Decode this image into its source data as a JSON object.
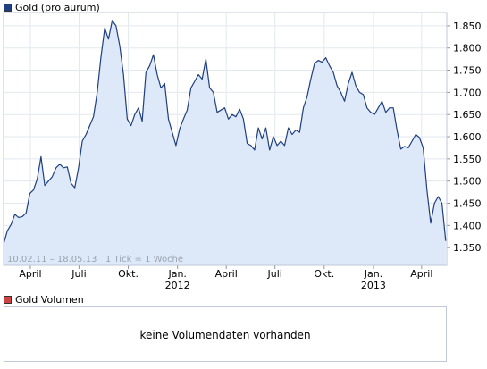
{
  "legend": {
    "price_label": "Gold (pro aurum)",
    "price_color": "#1f3f7f",
    "volume_label": "Gold Volumen",
    "volume_color": "#cc4444"
  },
  "info_text": "10.02.11 – 18.05.13   1 Tick = 1 Woche",
  "volume_panel": {
    "message": "keine Volumendaten vorhanden"
  },
  "chart_data": {
    "type": "area",
    "ylim": [
      1310,
      1880
    ],
    "y_ticks": [
      1350,
      1400,
      1450,
      1500,
      1550,
      1600,
      1650,
      1700,
      1750,
      1800,
      1850
    ],
    "y_tick_labels": [
      "1.350",
      "1.400",
      "1.450",
      "1.500",
      "1.550",
      "1.600",
      "1.650",
      "1.700",
      "1.750",
      "1.800",
      "1.850"
    ],
    "x_start": "2011-02-10",
    "x_end": "2013-05-18",
    "x_ticks": [
      {
        "date": "2011-04-01",
        "label": "April",
        "year": ""
      },
      {
        "date": "2011-07-01",
        "label": "Juli",
        "year": ""
      },
      {
        "date": "2011-10-01",
        "label": "Okt.",
        "year": ""
      },
      {
        "date": "2012-01-01",
        "label": "Jan.",
        "year": "2012"
      },
      {
        "date": "2012-04-01",
        "label": "April",
        "year": ""
      },
      {
        "date": "2012-07-01",
        "label": "Juli",
        "year": ""
      },
      {
        "date": "2012-10-01",
        "label": "Okt.",
        "year": ""
      },
      {
        "date": "2013-01-01",
        "label": "Jan.",
        "year": "2013"
      },
      {
        "date": "2013-04-01",
        "label": "April",
        "year": ""
      }
    ],
    "line_color": "#1f3f7f",
    "fill_color": "#dde8f8",
    "grid": true,
    "series": [
      {
        "values": [
          [
            "2011-02-10",
            1358
          ],
          [
            "2011-02-17",
            1388
          ],
          [
            "2011-02-24",
            1402
          ],
          [
            "2011-03-03",
            1425
          ],
          [
            "2011-03-10",
            1418
          ],
          [
            "2011-03-17",
            1420
          ],
          [
            "2011-03-24",
            1428
          ],
          [
            "2011-03-31",
            1472
          ],
          [
            "2011-04-07",
            1480
          ],
          [
            "2011-04-14",
            1505
          ],
          [
            "2011-04-21",
            1555
          ],
          [
            "2011-04-28",
            1490
          ],
          [
            "2011-05-05",
            1500
          ],
          [
            "2011-05-12",
            1510
          ],
          [
            "2011-05-19",
            1530
          ],
          [
            "2011-05-26",
            1538
          ],
          [
            "2011-06-02",
            1530
          ],
          [
            "2011-06-09",
            1532
          ],
          [
            "2011-06-16",
            1495
          ],
          [
            "2011-06-23",
            1485
          ],
          [
            "2011-06-30",
            1530
          ],
          [
            "2011-07-07",
            1590
          ],
          [
            "2011-07-14",
            1605
          ],
          [
            "2011-07-21",
            1625
          ],
          [
            "2011-07-28",
            1645
          ],
          [
            "2011-08-04",
            1700
          ],
          [
            "2011-08-11",
            1780
          ],
          [
            "2011-08-18",
            1845
          ],
          [
            "2011-08-25",
            1820
          ],
          [
            "2011-09-01",
            1862
          ],
          [
            "2011-09-08",
            1850
          ],
          [
            "2011-09-15",
            1805
          ],
          [
            "2011-09-22",
            1740
          ],
          [
            "2011-09-29",
            1640
          ],
          [
            "2011-10-06",
            1625
          ],
          [
            "2011-10-13",
            1650
          ],
          [
            "2011-10-20",
            1665
          ],
          [
            "2011-10-27",
            1635
          ],
          [
            "2011-11-03",
            1745
          ],
          [
            "2011-11-10",
            1760
          ],
          [
            "2011-11-17",
            1785
          ],
          [
            "2011-11-24",
            1740
          ],
          [
            "2011-12-01",
            1710
          ],
          [
            "2011-12-08",
            1720
          ],
          [
            "2011-12-15",
            1640
          ],
          [
            "2011-12-22",
            1610
          ],
          [
            "2011-12-29",
            1580
          ],
          [
            "2012-01-05",
            1618
          ],
          [
            "2012-01-12",
            1640
          ],
          [
            "2012-01-19",
            1660
          ],
          [
            "2012-01-26",
            1710
          ],
          [
            "2012-02-02",
            1725
          ],
          [
            "2012-02-09",
            1740
          ],
          [
            "2012-02-16",
            1730
          ],
          [
            "2012-02-23",
            1775
          ],
          [
            "2012-03-01",
            1710
          ],
          [
            "2012-03-08",
            1700
          ],
          [
            "2012-03-15",
            1655
          ],
          [
            "2012-03-22",
            1660
          ],
          [
            "2012-03-29",
            1665
          ],
          [
            "2012-04-05",
            1640
          ],
          [
            "2012-04-12",
            1650
          ],
          [
            "2012-04-19",
            1645
          ],
          [
            "2012-04-26",
            1662
          ],
          [
            "2012-05-03",
            1640
          ],
          [
            "2012-05-10",
            1585
          ],
          [
            "2012-05-17",
            1580
          ],
          [
            "2012-05-24",
            1570
          ],
          [
            "2012-05-31",
            1620
          ],
          [
            "2012-06-07",
            1595
          ],
          [
            "2012-06-14",
            1620
          ],
          [
            "2012-06-21",
            1570
          ],
          [
            "2012-06-28",
            1600
          ],
          [
            "2012-07-05",
            1580
          ],
          [
            "2012-07-12",
            1590
          ],
          [
            "2012-07-19",
            1580
          ],
          [
            "2012-07-26",
            1620
          ],
          [
            "2012-08-02",
            1605
          ],
          [
            "2012-08-09",
            1615
          ],
          [
            "2012-08-16",
            1610
          ],
          [
            "2012-08-23",
            1665
          ],
          [
            "2012-08-30",
            1690
          ],
          [
            "2012-09-06",
            1730
          ],
          [
            "2012-09-13",
            1765
          ],
          [
            "2012-09-20",
            1772
          ],
          [
            "2012-09-27",
            1768
          ],
          [
            "2012-10-04",
            1778
          ],
          [
            "2012-10-11",
            1760
          ],
          [
            "2012-10-18",
            1745
          ],
          [
            "2012-10-25",
            1715
          ],
          [
            "2012-11-01",
            1700
          ],
          [
            "2012-11-08",
            1680
          ],
          [
            "2012-11-15",
            1720
          ],
          [
            "2012-11-22",
            1745
          ],
          [
            "2012-11-29",
            1715
          ],
          [
            "2012-12-06",
            1700
          ],
          [
            "2012-12-13",
            1695
          ],
          [
            "2012-12-20",
            1665
          ],
          [
            "2012-12-27",
            1655
          ],
          [
            "2013-01-03",
            1650
          ],
          [
            "2013-01-10",
            1665
          ],
          [
            "2013-01-17",
            1680
          ],
          [
            "2013-01-24",
            1655
          ],
          [
            "2013-01-31",
            1665
          ],
          [
            "2013-02-07",
            1665
          ],
          [
            "2013-02-14",
            1615
          ],
          [
            "2013-02-21",
            1572
          ],
          [
            "2013-02-28",
            1578
          ],
          [
            "2013-03-07",
            1575
          ],
          [
            "2013-03-14",
            1590
          ],
          [
            "2013-03-21",
            1605
          ],
          [
            "2013-03-28",
            1598
          ],
          [
            "2013-04-04",
            1575
          ],
          [
            "2013-04-11",
            1480
          ],
          [
            "2013-04-18",
            1405
          ],
          [
            "2013-04-25",
            1450
          ],
          [
            "2013-05-02",
            1465
          ],
          [
            "2013-05-09",
            1450
          ],
          [
            "2013-05-16",
            1365
          ]
        ]
      }
    ]
  }
}
